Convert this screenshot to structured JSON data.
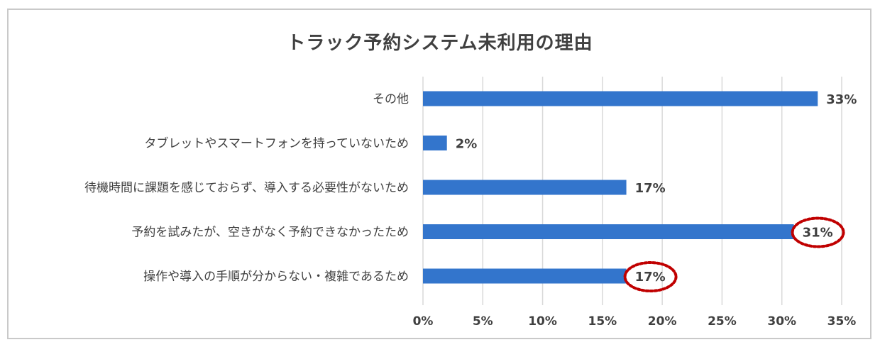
{
  "chart_data": {
    "type": "bar",
    "orientation": "horizontal",
    "title": "トラック予約システム未利用の理由",
    "categories": [
      "その他",
      "タブレットやスマートフォンを持っていないため",
      "待機時間に課題を感じておらず、導入する必要性がないため",
      "予約を試みたが、空きがなく予約できなかったため",
      "操作や導入の手順が分からない・複雑であるため"
    ],
    "values": [
      33,
      2,
      17,
      31,
      17
    ],
    "value_labels": [
      "33%",
      "2%",
      "17%",
      "31%",
      "17%"
    ],
    "highlighted": [
      false,
      false,
      false,
      true,
      true
    ],
    "xlim": [
      0,
      35
    ],
    "xticks": [
      "0%",
      "5%",
      "10%",
      "15%",
      "20%",
      "25%",
      "30%",
      "35%"
    ],
    "xlabel": "",
    "ylabel": "",
    "grid": "vertical",
    "legend": "none",
    "colors": {
      "bar": "#3375cc",
      "grid": "#d9d9d9",
      "highlight": "#c00000",
      "text": "#404040"
    }
  }
}
